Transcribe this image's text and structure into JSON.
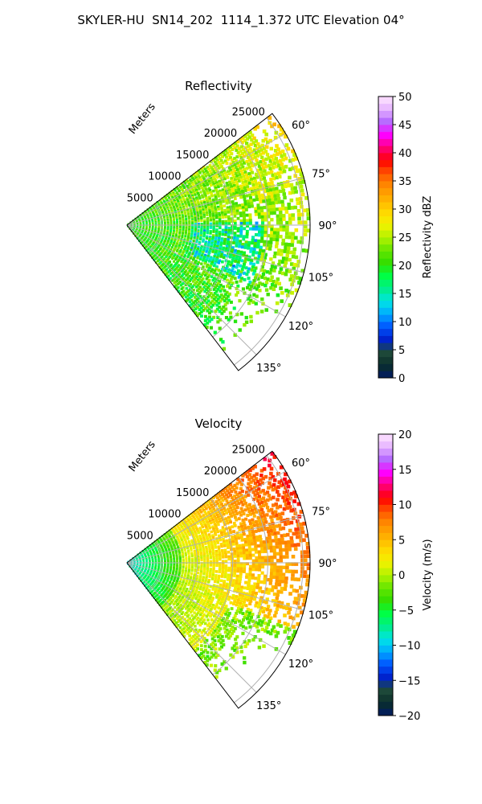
{
  "figure_title": "SKYLER-HU  SN14_202  1114_1.372 UTC Elevation 04°",
  "chart_data": [
    {
      "type": "heatmap",
      "projection": "polar-sector",
      "title": "Reflectivity",
      "radial_label": "Meters",
      "radial_ticks": [
        "5000",
        "10000",
        "15000",
        "20000",
        "25000"
      ],
      "angle_ticks": [
        "60°",
        "75°",
        "90°",
        "105°",
        "120°",
        "135°"
      ],
      "theta_range_deg": [
        52.5,
        142.5
      ],
      "r_max_m": 26000,
      "colorbar": {
        "label": "Reflectivity dBZ",
        "range": [
          0,
          50
        ],
        "ticks": [
          "0",
          "5",
          "10",
          "15",
          "20",
          "25",
          "30",
          "35",
          "40",
          "45",
          "50"
        ]
      },
      "field_summary": {
        "dominant_range": [
          15,
          30
        ],
        "near_center": 20,
        "north_far": 27,
        "center_band_low": 13
      }
    },
    {
      "type": "heatmap",
      "projection": "polar-sector",
      "title": "Velocity",
      "radial_label": "Meters",
      "radial_ticks": [
        "5000",
        "10000",
        "15000",
        "20000",
        "25000"
      ],
      "angle_ticks": [
        "60°",
        "75°",
        "90°",
        "105°",
        "120°",
        "135°"
      ],
      "theta_range_deg": [
        52.5,
        142.5
      ],
      "r_max_m": 26000,
      "colorbar": {
        "label": "Velocity (m/s)",
        "range": [
          -20,
          20
        ],
        "ticks": [
          "−20",
          "−15",
          "−10",
          "−5",
          "0",
          "5",
          "10",
          "15",
          "20"
        ]
      },
      "field_summary": {
        "near_center": -9,
        "mid_range": 0,
        "north_far": 6,
        "south_far": -3
      }
    }
  ],
  "colors": {
    "grid": "#b0b0b0",
    "colormap": [
      "#001a66",
      "#0a2d2a",
      "#1f4a3a",
      "#0022cc",
      "#0055ff",
      "#00aaff",
      "#00e5e5",
      "#00ee88",
      "#00ff44",
      "#33dd00",
      "#66e600",
      "#b3f200",
      "#f2f200",
      "#ffd700",
      "#ffb000",
      "#ff8c00",
      "#ff5500",
      "#ff0000",
      "#ff0077",
      "#ff00ff",
      "#b366ff",
      "#e6b3ff",
      "#ffe6ff"
    ]
  }
}
